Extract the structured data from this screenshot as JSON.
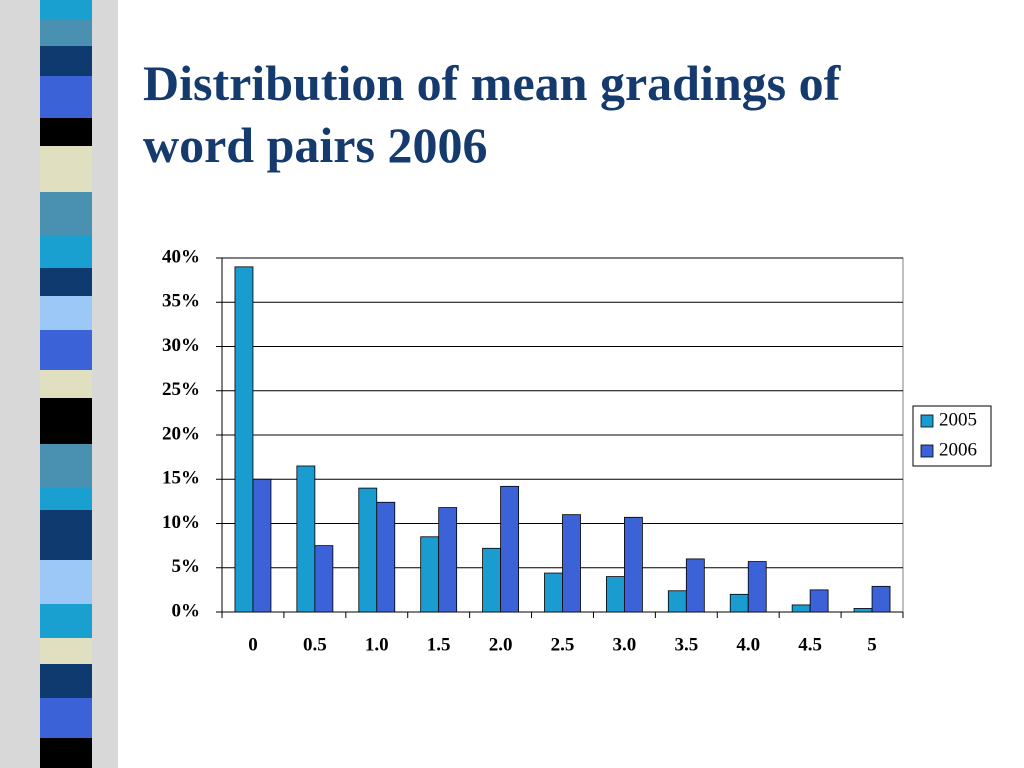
{
  "chart_data": {
    "type": "bar",
    "title": "Distribution of mean gradings of word pairs 2006",
    "categories": [
      "0",
      "0.5",
      "1.0",
      "1.5",
      "2.0",
      "2.5",
      "3.0",
      "3.5",
      "4.0",
      "4.5",
      "5"
    ],
    "series": [
      {
        "name": "2005",
        "color": "#1a9cd0",
        "values": [
          39,
          16.5,
          14,
          8.5,
          7.2,
          4.4,
          4,
          2.4,
          2,
          0.8,
          0.4
        ]
      },
      {
        "name": "2006",
        "color": "#3c62d8",
        "values": [
          15,
          7.5,
          12.4,
          11.8,
          14.2,
          11,
          10.7,
          6,
          5.7,
          2.5,
          2.9
        ]
      }
    ],
    "ylim": [
      0,
      40
    ],
    "yticks": [
      {
        "value": 0,
        "label": "0%"
      },
      {
        "value": 5,
        "label": "5%"
      },
      {
        "value": 10,
        "label": "10%"
      },
      {
        "value": 15,
        "label": "15%"
      },
      {
        "value": 20,
        "label": "20%"
      },
      {
        "value": 25,
        "label": "25%"
      },
      {
        "value": 30,
        "label": "30%"
      },
      {
        "value": 35,
        "label": "35%"
      },
      {
        "value": 40,
        "label": "40%"
      }
    ],
    "grid": true,
    "legend": "right"
  }
}
